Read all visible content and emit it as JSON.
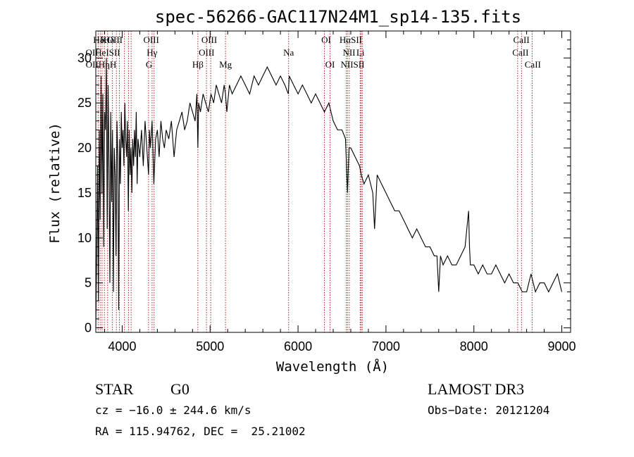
{
  "chart_data": {
    "type": "line",
    "title": "spec-56266-GAC117N24M1_sp14-135.fits",
    "xlabel": "Wavelength (Å)",
    "ylabel": "Flux (relative)",
    "xlim": [
      3700,
      9100
    ],
    "ylim": [
      -0.5,
      33
    ],
    "xticks": [
      4000,
      5000,
      6000,
      7000,
      8000,
      9000
    ],
    "yticks": [
      0,
      5,
      10,
      15,
      20,
      25,
      30
    ],
    "series": [
      {
        "name": "flux",
        "x": [
          3700,
          3710,
          3720,
          3730,
          3740,
          3750,
          3760,
          3770,
          3780,
          3790,
          3800,
          3810,
          3820,
          3830,
          3840,
          3850,
          3860,
          3870,
          3880,
          3890,
          3900,
          3910,
          3920,
          3930,
          3940,
          3950,
          3960,
          3970,
          3980,
          3990,
          4000,
          4010,
          4020,
          4030,
          4040,
          4050,
          4060,
          4070,
          4080,
          4090,
          4100,
          4110,
          4120,
          4130,
          4140,
          4150,
          4160,
          4170,
          4180,
          4190,
          4200,
          4220,
          4240,
          4260,
          4280,
          4300,
          4310,
          4320,
          4340,
          4360,
          4380,
          4400,
          4420,
          4440,
          4460,
          4480,
          4500,
          4530,
          4560,
          4590,
          4620,
          4650,
          4680,
          4710,
          4740,
          4770,
          4800,
          4830,
          4850,
          4861,
          4870,
          4890,
          4920,
          4950,
          4980,
          5010,
          5040,
          5070,
          5100,
          5130,
          5160,
          5175,
          5190,
          5220,
          5250,
          5300,
          5350,
          5400,
          5450,
          5500,
          5550,
          5600,
          5650,
          5700,
          5750,
          5800,
          5850,
          5890,
          5900,
          5950,
          6000,
          6050,
          6100,
          6150,
          6200,
          6250,
          6300,
          6350,
          6400,
          6450,
          6500,
          6540,
          6563,
          6580,
          6600,
          6650,
          6700,
          6720,
          6750,
          6800,
          6850,
          6870,
          6900,
          6950,
          7000,
          7050,
          7100,
          7150,
          7200,
          7250,
          7300,
          7350,
          7400,
          7450,
          7500,
          7550,
          7580,
          7600,
          7620,
          7650,
          7700,
          7750,
          7800,
          7850,
          7900,
          7940,
          7950,
          7960,
          8000,
          8050,
          8100,
          8150,
          8200,
          8250,
          8300,
          8350,
          8400,
          8450,
          8500,
          8550,
          8600,
          8650,
          8700,
          8750,
          8800,
          8850,
          8900,
          8950,
          9000
        ],
        "values": [
          0,
          8,
          18,
          3,
          22,
          12,
          28,
          15,
          26,
          9,
          24,
          22,
          30,
          11,
          27,
          18,
          5,
          24,
          14,
          22,
          4,
          20,
          17,
          8,
          23,
          19,
          2,
          21,
          16,
          24,
          20,
          22,
          18,
          25,
          21,
          19,
          23,
          13,
          22,
          17,
          20,
          15,
          21,
          18,
          22,
          19,
          24,
          16,
          21,
          20,
          19,
          22,
          18,
          23,
          20,
          17,
          22,
          20,
          23,
          16,
          21,
          22,
          19,
          23,
          21,
          20,
          22,
          21,
          23,
          19,
          22,
          23,
          24,
          22,
          23,
          25,
          24,
          23,
          26,
          20,
          25,
          24,
          26,
          25,
          24,
          26,
          25,
          27,
          26,
          25,
          27,
          26,
          24,
          27,
          26,
          27,
          28,
          27,
          26,
          28,
          27,
          28,
          29,
          28,
          27,
          28,
          27,
          26,
          28,
          27,
          26,
          27,
          26,
          25,
          26,
          25,
          24,
          25,
          23,
          22,
          22,
          21,
          15,
          20,
          20,
          19,
          18,
          17,
          16,
          17,
          15,
          11,
          17,
          16,
          15,
          14,
          13,
          13,
          12,
          11,
          10,
          11,
          10,
          9,
          9,
          8,
          8,
          4,
          8,
          7,
          8,
          7,
          7,
          8,
          9,
          13,
          9,
          7,
          7,
          6,
          7,
          6,
          6,
          7,
          6,
          5,
          6,
          5,
          5,
          4,
          4,
          6,
          4,
          5,
          5,
          4,
          5,
          6,
          4
        ]
      }
    ],
    "spectral_lines": [
      {
        "name": "Hδ",
        "x": 3732,
        "row": 0
      },
      {
        "name": "K",
        "x": 3790,
        "row": 0
      },
      {
        "name": "Hδ",
        "x": 3850,
        "row": 0
      },
      {
        "name": "OIII",
        "x": 3915,
        "row": 0
      },
      {
        "name": "OIII",
        "x": 4330,
        "row": 0
      },
      {
        "name": "OIII",
        "x": 4990,
        "row": 0
      },
      {
        "name": "OI",
        "x": 6320,
        "row": 0
      },
      {
        "name": "HαSII",
        "x": 6600,
        "row": 0
      },
      {
        "name": "CaII",
        "x": 8540,
        "row": 0
      },
      {
        "name": "OIHeISII",
        "x": 3780,
        "row": 1
      },
      {
        "name": "Hγ",
        "x": 4340,
        "row": 1
      },
      {
        "name": "OIII",
        "x": 4960,
        "row": 1
      },
      {
        "name": "Na",
        "x": 5893,
        "row": 1
      },
      {
        "name": "NII",
        "x": 6580,
        "row": 1
      },
      {
        "name": "Li",
        "x": 6710,
        "row": 1
      },
      {
        "name": "CaII",
        "x": 8530,
        "row": 1
      },
      {
        "name": "OIIHηH",
        "x": 3760,
        "row": 2
      },
      {
        "name": "G",
        "x": 4305,
        "row": 2
      },
      {
        "name": "Hβ",
        "x": 4861,
        "row": 2
      },
      {
        "name": "Mg",
        "x": 5175,
        "row": 2
      },
      {
        "name": "OI",
        "x": 6364,
        "row": 2
      },
      {
        "name": "NIISII",
        "x": 6620,
        "row": 2
      },
      {
        "name": "CaII",
        "x": 8670,
        "row": 2
      }
    ],
    "line_positions": [
      3727,
      3750,
      3771,
      3798,
      3835,
      3889,
      3934,
      3968,
      4026,
      4072,
      4102,
      4300,
      4340,
      4363,
      4861,
      4959,
      5007,
      5175,
      5893,
      6300,
      6364,
      6548,
      6563,
      6583,
      6707,
      6717,
      6731,
      8498,
      8542,
      8662
    ]
  },
  "info": {
    "class": "STAR",
    "subclass": "G0",
    "survey": "LAMOST DR3",
    "cz": "cz = −16.0 ± 244.6 km/s",
    "obs_date": "Obs−Date: 20121204",
    "coords": "RA = 115.94762, DEC =  25.21002"
  }
}
